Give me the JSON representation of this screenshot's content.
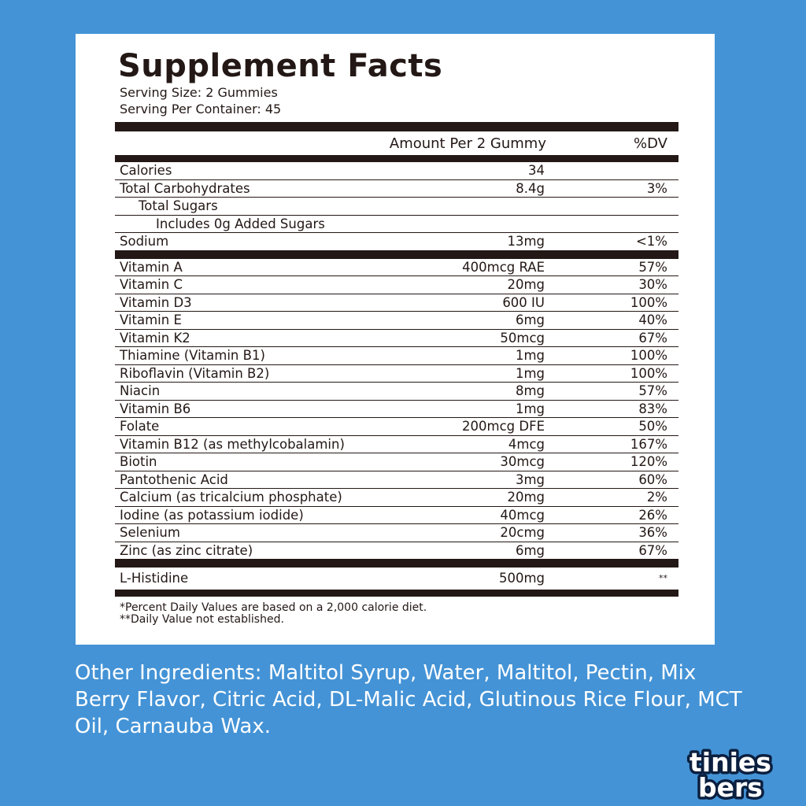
{
  "facts": {
    "title": "Supplement Facts",
    "serving_size": "Serving Size: 2 Gummies",
    "servings_per_container": "Serving Per Container: 45",
    "amount_header": "Amount Per 2 Gummy",
    "dv_header": "%DV",
    "macros": [
      {
        "name": "Calories",
        "amount": "34",
        "dv": ""
      },
      {
        "name": "Total Carbohydrates",
        "amount": "8.4g",
        "dv": "3%"
      },
      {
        "name": "Total Sugars",
        "amount": "",
        "dv": ""
      },
      {
        "name": "Includes 0g Added Sugars",
        "amount": "",
        "dv": ""
      },
      {
        "name": "Sodium",
        "amount": "13mg",
        "dv": "<1%"
      }
    ],
    "vitamins": [
      {
        "name": "Vitamin A",
        "amount": "400mcg RAE",
        "dv": "57%"
      },
      {
        "name": "Vitamin C",
        "amount": "20mg",
        "dv": "30%"
      },
      {
        "name": "Vitamin D3",
        "amount": "600 IU",
        "dv": "100%"
      },
      {
        "name": "Vitamin E",
        "amount": "6mg",
        "dv": "40%"
      },
      {
        "name": "Vitamin K2",
        "amount": "50mcg",
        "dv": "67%"
      },
      {
        "name": "Thiamine (Vitamin B1)",
        "amount": "1mg",
        "dv": "100%"
      },
      {
        "name": "Riboflavin (Vitamin B2)",
        "amount": "1mg",
        "dv": "100%"
      },
      {
        "name": "Niacin",
        "amount": "8mg",
        "dv": "57%"
      },
      {
        "name": "Vitamin B6",
        "amount": "1mg",
        "dv": "83%"
      },
      {
        "name": "Folate",
        "amount": "200mcg DFE",
        "dv": "50%"
      },
      {
        "name": "Vitamin B12 (as methylcobalamin)",
        "amount": "4mcg",
        "dv": "167%"
      },
      {
        "name": "Biotin",
        "amount": "30mcg",
        "dv": "120%"
      },
      {
        "name": "Pantothenic Acid",
        "amount": "3mg",
        "dv": "60%"
      },
      {
        "name": "Calcium (as tricalcium phosphate)",
        "amount": "20mg",
        "dv": "2%"
      },
      {
        "name": "Iodine (as potassium iodide)",
        "amount": "40mcg",
        "dv": "26%"
      },
      {
        "name": "Selenium",
        "amount": "20cmg",
        "dv": "36%"
      },
      {
        "name": "Zinc (as zinc citrate)",
        "amount": "6mg",
        "dv": "67%"
      }
    ],
    "other": {
      "name": "L-Histidine",
      "amount": "500mg",
      "dv": "**"
    },
    "footnote_1": "*Percent Daily Values are based on a 2,000 calorie diet.",
    "footnote_2": "**Daily Value not established."
  },
  "ingredients": "Other Ingredients: Maltitol Syrup, Water, Maltitol, Pectin, Mix Berry Flavor, Citric Acid, DL-Malic Acid, Glutinous Rice Flour, MCT Oil, Carnauba Wax.",
  "logo": {
    "line1": "tinies",
    "line2": "bers"
  },
  "colors": {
    "background": "#4493d6",
    "panel": "#ffffff",
    "ink": "#231815"
  }
}
